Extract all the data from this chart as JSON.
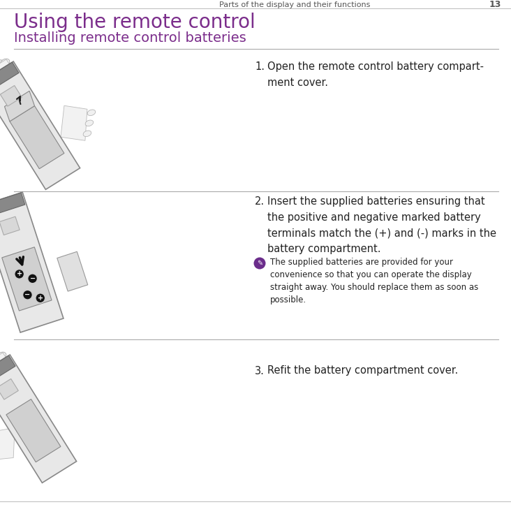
{
  "bg_color": "#ffffff",
  "header_text": "Parts of the display and their functions",
  "header_page": "13",
  "header_color": "#555555",
  "header_fontsize": 8.0,
  "title1": "Using the remote control",
  "title1_color": "#7b2d8b",
  "title1_fontsize": 20,
  "title2": "Installing remote control batteries",
  "title2_color": "#7b2d8b",
  "title2_fontsize": 14,
  "divider_color": "#aaaaaa",
  "step1_num": "1.",
  "step1_text": "Open the remote control battery compart-\nment cover.",
  "step2_num": "2.",
  "step2_text": "Insert the supplied batteries ensuring that\nthe positive and negative marked battery\nterminals match the (+) and (-) marks in the\nbattery compartment.",
  "note_icon_color": "#6b2d8b",
  "note_text": "The supplied batteries are provided for your\nconvenience so that you can operate the display\nstraight away. You should replace them as soon as\npossible.",
  "step3_num": "3.",
  "step3_text": "Refit the battery compartment cover.",
  "text_color": "#222222",
  "body_fontsize": 10.5,
  "note_fontsize": 8.5
}
